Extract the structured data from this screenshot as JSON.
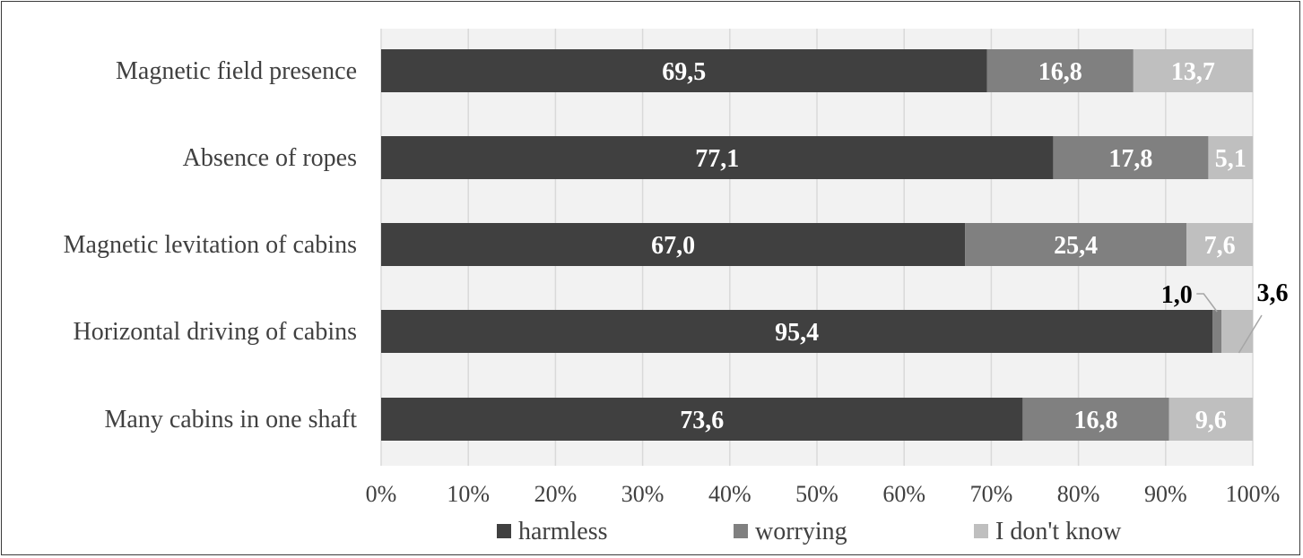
{
  "chart_data": {
    "type": "bar",
    "orientation": "horizontal",
    "stacked": true,
    "percent_stacked": true,
    "categories": [
      "Magnetic field presence",
      "Absence of ropes",
      "Magnetic levitation of cabins",
      "Horizontal driving of cabins",
      "Many cabins in one shaft"
    ],
    "series": [
      {
        "name": "harmless",
        "color": "#404040",
        "values": [
          69.5,
          77.1,
          67.0,
          95.4,
          73.6
        ],
        "labels": [
          "69,5",
          "77,1",
          "67,0",
          "95,4",
          "73,6"
        ]
      },
      {
        "name": "worrying",
        "color": "#808080",
        "values": [
          16.8,
          17.8,
          25.4,
          1.0,
          16.8
        ],
        "labels": [
          "16,8",
          "17,8",
          "25,4",
          "1,0",
          "16,8"
        ]
      },
      {
        "name": "I don't know",
        "color": "#bfbfbf",
        "values": [
          13.7,
          5.1,
          7.6,
          3.6,
          9.6
        ],
        "labels": [
          "13,7",
          "5,1",
          "7,6",
          "3,6",
          "9,6"
        ]
      }
    ],
    "xlim": [
      0,
      100
    ],
    "xticks": [
      "0%",
      "10%",
      "20%",
      "30%",
      "40%",
      "50%",
      "60%",
      "70%",
      "80%",
      "90%",
      "100%"
    ],
    "grid": true,
    "legend_position": "bottom",
    "plot_background": "#f2f2f2"
  }
}
